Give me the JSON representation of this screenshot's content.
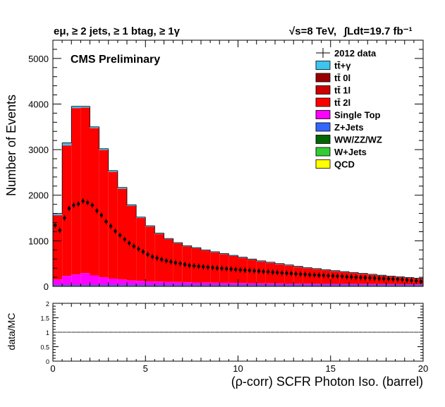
{
  "header": {
    "selection": "eμ, ≥ 2 jets, ≥ 1 btag, ≥ 1γ",
    "energy": "√s=8 TeV,",
    "lumi": "∫Ldt=19.7 fb⁻¹"
  },
  "labels": {
    "cms": "CMS Preliminary",
    "ylabel_main": "Number of Events",
    "ylabel_ratio": "data/MC",
    "xlabel": "(ρ-corr) SCFR Photon Iso. (barrel)"
  },
  "legend": [
    {
      "label": "2012 data",
      "color": "#000000",
      "kind": "data"
    },
    {
      "label": "tt̄+γ",
      "color": "#3cc5f0",
      "kind": "fill"
    },
    {
      "label": "tt̄ 0l",
      "color": "#990000",
      "kind": "fill"
    },
    {
      "label": "tt̄ 1l",
      "color": "#cc0000",
      "kind": "fill"
    },
    {
      "label": "tt̄ 2l",
      "color": "#ff0000",
      "kind": "fill"
    },
    {
      "label": "Single Top",
      "color": "#ff00ff",
      "kind": "fill"
    },
    {
      "label": "Z+Jets",
      "color": "#3366ff",
      "kind": "fill"
    },
    {
      "label": "WW/ZZ/WZ",
      "color": "#006600",
      "kind": "fill"
    },
    {
      "label": "W+Jets",
      "color": "#33cc33",
      "kind": "fill"
    },
    {
      "label": "QCD",
      "color": "#ffff00",
      "kind": "fill"
    }
  ],
  "chart_data": {
    "type": "bar",
    "xlabel": "(ρ-corr) SCFR Photon Iso. (barrel)",
    "ylabel": "Number of Events",
    "xlim": [
      0,
      20
    ],
    "ylim": [
      0,
      5400
    ],
    "xticks": [
      0,
      5,
      10,
      15,
      20
    ],
    "yticks": [
      0,
      1000,
      2000,
      3000,
      4000,
      5000
    ],
    "ratio_ylim": [
      0,
      2
    ],
    "ratio_yticks": [
      0,
      0.5,
      1,
      1.5,
      2
    ],
    "bin_width": 0.5,
    "stacked_total": [
      1600,
      3150,
      3950,
      3950,
      3500,
      3020,
      2540,
      2170,
      1790,
      1520,
      1330,
      1170,
      1050,
      960,
      890,
      850,
      800,
      760,
      720,
      680,
      640,
      600,
      560,
      530,
      500,
      470,
      440,
      410,
      390,
      365,
      345,
      325,
      305,
      285,
      265,
      245,
      225,
      210,
      195,
      180
    ],
    "ttgamma_top": [
      1560,
      3090,
      3910,
      3920,
      3470,
      2990,
      2510,
      2140,
      1765,
      1500,
      1310,
      1150,
      1035,
      945,
      875,
      835,
      785,
      745,
      705,
      665,
      625,
      585,
      545,
      515,
      485,
      455,
      425,
      397,
      377,
      352,
      332,
      312,
      292,
      272,
      252,
      232,
      212,
      198,
      183,
      168
    ],
    "single_top": [
      120,
      200,
      230,
      260,
      210,
      170,
      140,
      120,
      100,
      90,
      80,
      75,
      70,
      65,
      60,
      55,
      52,
      50,
      48,
      45,
      43,
      40,
      38,
      36,
      34,
      32,
      30,
      28,
      26,
      25,
      24,
      23,
      22,
      21,
      20,
      19,
      18,
      17,
      16,
      15
    ],
    "data_x": [
      0.125,
      0.375,
      0.625,
      0.875,
      1.125,
      1.375,
      1.625,
      1.875,
      2.125,
      2.375,
      2.625,
      2.875,
      3.125,
      3.375,
      3.625,
      3.875,
      4.125,
      4.375,
      4.625,
      4.875,
      5.125,
      5.375,
      5.625,
      5.875,
      6.125,
      6.375,
      6.625,
      6.875,
      7.125,
      7.375,
      7.625,
      7.875,
      8.125,
      8.375,
      8.625,
      8.875,
      9.125,
      9.375,
      9.625,
      9.875,
      10.125,
      10.375,
      10.625,
      10.875,
      11.125,
      11.375,
      11.625,
      11.875,
      12.125,
      12.375,
      12.625,
      12.875,
      13.125,
      13.375,
      13.625,
      13.875,
      14.125,
      14.375,
      14.625,
      14.875,
      15.125,
      15.375,
      15.625,
      15.875,
      16.125,
      16.375,
      16.625,
      16.875,
      17.125,
      17.375,
      17.625,
      17.875,
      18.125,
      18.375,
      18.625,
      18.875,
      19.125,
      19.375,
      19.625,
      19.875
    ],
    "data_y": [
      1340,
      1230,
      1500,
      1710,
      1780,
      1810,
      1870,
      1840,
      1780,
      1660,
      1560,
      1420,
      1320,
      1210,
      1120,
      1030,
      950,
      880,
      820,
      760,
      700,
      650,
      620,
      590,
      560,
      540,
      520,
      500,
      480,
      460,
      450,
      440,
      430,
      420,
      410,
      400,
      395,
      385,
      380,
      370,
      360,
      355,
      350,
      340,
      335,
      325,
      320,
      310,
      305,
      295,
      290,
      285,
      275,
      270,
      265,
      255,
      250,
      245,
      240,
      235,
      230,
      225,
      220,
      210,
      205,
      200,
      195,
      190,
      185,
      180,
      175,
      170,
      165,
      160,
      155,
      150,
      140,
      130,
      120,
      105
    ]
  }
}
